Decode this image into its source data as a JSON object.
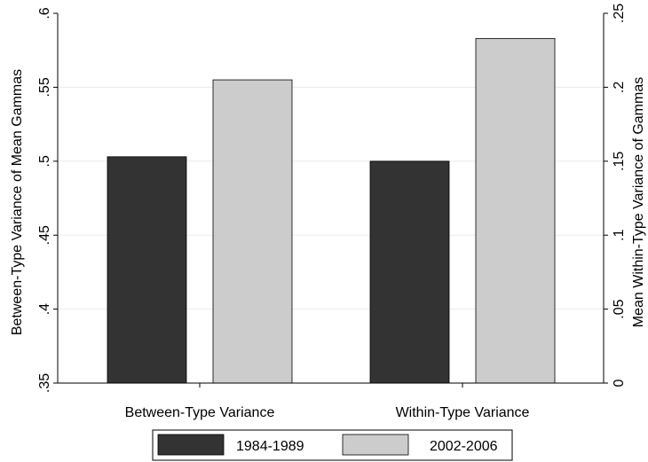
{
  "chart_data": {
    "type": "bar",
    "categories": [
      "Between-Type Variance",
      "Within-Type Variance"
    ],
    "series": [
      {
        "name": "1984-1989",
        "color": "#333333"
      },
      {
        "name": "2002-2006",
        "color": "#cccccc"
      }
    ],
    "bars": [
      {
        "category": "Between-Type Variance",
        "series": "1984-1989",
        "value": 0.503,
        "axis": "left"
      },
      {
        "category": "Between-Type Variance",
        "series": "2002-2006",
        "value": 0.555,
        "axis": "left"
      },
      {
        "category": "Within-Type Variance",
        "series": "1984-1989",
        "value": 0.15,
        "axis": "right"
      },
      {
        "category": "Within-Type Variance",
        "series": "2002-2006",
        "value": 0.233,
        "axis": "right"
      }
    ],
    "ylabel_left": "Between-Type Variance of Mean Gammas",
    "ylabel_right": "Mean Within-Type Variance of Gammas",
    "ylim_left": [
      0.35,
      0.6
    ],
    "ylim_right": [
      0,
      0.25
    ],
    "yticks_left": [
      ".35",
      ".4",
      ".45",
      ".5",
      ".55",
      ".6"
    ],
    "yticks_right": [
      "0",
      ".05",
      ".1",
      ".15",
      ".2",
      ".25"
    ],
    "grid": true,
    "legend_position": "bottom"
  }
}
